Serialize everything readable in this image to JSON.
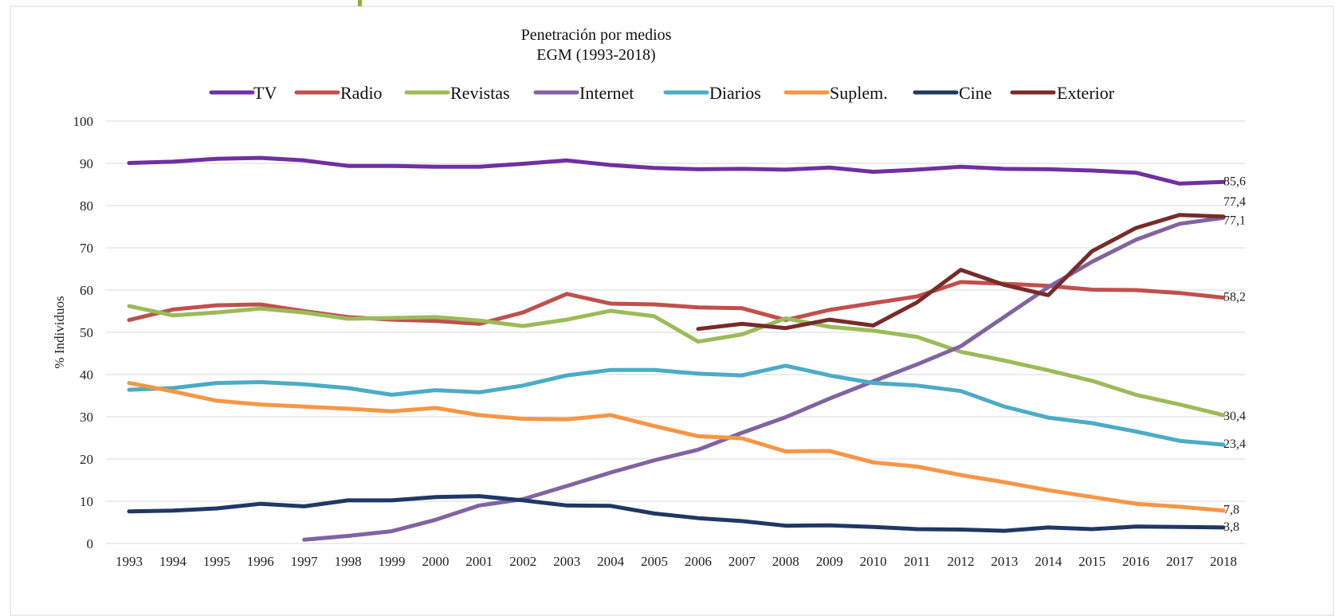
{
  "chart_data": {
    "type": "line",
    "title": "Penetración por medios",
    "subtitle": "EGM (1993-2018)",
    "xlabel": "",
    "ylabel": "% Individuos",
    "ylim": [
      0,
      100
    ],
    "yticks": [
      "0",
      "10",
      "20",
      "30",
      "40",
      "50",
      "60",
      "70",
      "80",
      "90",
      "100"
    ],
    "grid": true,
    "legend_position": "top",
    "categories": [
      "1993",
      "1994",
      "1995",
      "1996",
      "1997",
      "1998",
      "1999",
      "2000",
      "2001",
      "2002",
      "2003",
      "2004",
      "2005",
      "2006",
      "2007",
      "2008",
      "2009",
      "2010",
      "2011",
      "2012",
      "2013",
      "2014",
      "2015",
      "2016",
      "2017",
      "2018"
    ],
    "series": [
      {
        "name": "TV",
        "color": "#7030A0",
        "end_label": "85,6",
        "values": [
          90.1,
          90.4,
          91.1,
          91.3,
          90.7,
          89.4,
          89.4,
          89.2,
          89.2,
          89.9,
          90.7,
          89.6,
          88.9,
          88.6,
          88.7,
          88.5,
          89.0,
          88.0,
          88.5,
          89.2,
          88.7,
          88.6,
          88.3,
          87.8,
          85.2,
          85.6
        ]
      },
      {
        "name": "Radio",
        "color": "#C0504D",
        "end_label": "58,2",
        "values": [
          52.9,
          55.4,
          56.4,
          56.6,
          55.0,
          53.6,
          53.0,
          52.7,
          52.0,
          54.7,
          59.1,
          56.8,
          56.6,
          55.9,
          55.7,
          52.9,
          55.3,
          56.9,
          58.5,
          61.9,
          61.5,
          61.0,
          60.1,
          60.0,
          59.3,
          58.2
        ]
      },
      {
        "name": "Revistas",
        "color": "#9BBB59",
        "end_label": "30,4",
        "values": [
          56.2,
          54.0,
          54.7,
          55.6,
          54.7,
          53.2,
          53.4,
          53.6,
          52.8,
          51.5,
          53.0,
          55.1,
          53.8,
          47.8,
          49.5,
          53.3,
          51.3,
          50.4,
          48.9,
          45.4,
          43.3,
          41.0,
          38.5,
          35.2,
          32.9,
          30.4
        ]
      },
      {
        "name": "Internet",
        "color": "#8064A2",
        "end_label": "77,1",
        "values": [
          null,
          null,
          null,
          null,
          0.9,
          1.8,
          2.9,
          5.6,
          9.0,
          10.5,
          13.6,
          16.8,
          19.7,
          22.2,
          26.2,
          29.9,
          34.3,
          38.4,
          42.4,
          46.7,
          53.7,
          60.7,
          66.7,
          71.9,
          75.7,
          77.1
        ]
      },
      {
        "name": "Diarios",
        "color": "#4BACC6",
        "end_label": "23,4",
        "values": [
          36.4,
          36.8,
          38.0,
          38.2,
          37.7,
          36.8,
          35.2,
          36.3,
          35.8,
          37.4,
          39.8,
          41.1,
          41.1,
          40.2,
          39.8,
          42.1,
          39.8,
          38.0,
          37.4,
          36.1,
          32.4,
          29.8,
          28.5,
          26.5,
          24.3,
          23.4
        ]
      },
      {
        "name": "Suplem.",
        "color": "#F79646",
        "end_label": "7,8",
        "values": [
          38.0,
          36.0,
          33.8,
          32.9,
          32.4,
          31.9,
          31.3,
          32.1,
          30.4,
          29.5,
          29.4,
          30.4,
          27.8,
          25.4,
          24.9,
          21.8,
          21.9,
          19.2,
          18.2,
          16.2,
          14.5,
          12.6,
          11.0,
          9.4,
          8.7,
          7.8
        ]
      },
      {
        "name": "Cine",
        "color": "#1F3864",
        "end_label": "3,8",
        "values": [
          7.6,
          7.8,
          8.3,
          9.4,
          8.8,
          10.2,
          10.2,
          11.0,
          11.2,
          10.2,
          9.0,
          8.9,
          7.1,
          6.0,
          5.3,
          4.2,
          4.3,
          3.9,
          3.4,
          3.3,
          3.0,
          3.8,
          3.4,
          4.0,
          3.9,
          3.8
        ]
      },
      {
        "name": "Exterior",
        "color": "#772C2A",
        "end_label": "77,4",
        "values": [
          null,
          null,
          null,
          null,
          null,
          null,
          null,
          null,
          null,
          null,
          null,
          null,
          null,
          50.8,
          52.0,
          51.0,
          53.0,
          51.6,
          57.1,
          64.8,
          61.2,
          58.8,
          69.2,
          74.7,
          77.8,
          77.4
        ]
      }
    ]
  }
}
